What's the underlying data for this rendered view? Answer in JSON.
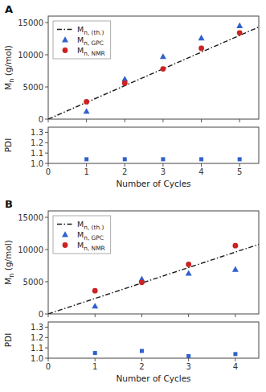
{
  "chart_data": [
    {
      "type": "scatter",
      "title": "A",
      "ylabel": "Mn (g/mol)",
      "xlim": [
        0,
        5.5
      ],
      "xticks": [
        0,
        1,
        2,
        3,
        4,
        5
      ],
      "ylim": [
        0,
        16000
      ],
      "yticks": [
        0,
        5000,
        10000,
        15000
      ],
      "tick_labels": "y",
      "legend": "upper left",
      "series": [
        {
          "name": "Mn, (th.)",
          "type": "line",
          "line_style": "dashdot",
          "color": "#1a1a1a",
          "x": [
            0,
            5.5
          ],
          "values": [
            0,
            14300
          ]
        },
        {
          "name": "Mn, GPC",
          "type": "scatter",
          "marker": "triangle",
          "color": "#3060CC",
          "x": [
            1,
            2,
            3,
            4,
            5
          ],
          "values": [
            1200,
            6200,
            9700,
            12600,
            14500
          ]
        },
        {
          "name": "Mn, NMR",
          "type": "scatter",
          "marker": "circle",
          "color": "#CC2222",
          "x": [
            1,
            2,
            3,
            4,
            5
          ],
          "values": [
            2700,
            5600,
            7800,
            11000,
            13400
          ]
        }
      ]
    },
    {
      "type": "scatter",
      "xlabel": "Number of Cycles",
      "ylabel": "PDI",
      "xlim": [
        0,
        5.5
      ],
      "xticks": [
        0,
        1,
        2,
        3,
        4,
        5
      ],
      "ylim": [
        1.0,
        1.35
      ],
      "yticks": [
        {
          "value": 1.0,
          "label": "1.0"
        },
        1.1,
        1.2,
        1.3
      ],
      "series": [
        {
          "type": "scatter",
          "marker": "square",
          "color": "#3060CC",
          "x": [
            1,
            2,
            3,
            4,
            5
          ],
          "values": [
            1.04,
            1.04,
            1.04,
            1.04,
            1.04
          ]
        }
      ]
    },
    {
      "type": "scatter",
      "title": "B",
      "ylabel": "Mn (g/mol)",
      "xlim": [
        0,
        4.5
      ],
      "xticks": [
        0,
        1,
        2,
        3,
        4
      ],
      "ylim": [
        0,
        16000
      ],
      "yticks": [
        0,
        5000,
        10000,
        15000
      ],
      "tick_labels": "y",
      "legend": "upper left",
      "series": [
        {
          "name": "Mn, (th.)",
          "type": "line",
          "line_style": "dashdot",
          "color": "#1a1a1a",
          "x": [
            0,
            4.5
          ],
          "values": [
            0,
            10800
          ]
        },
        {
          "name": "Mn, GPC",
          "type": "scatter",
          "marker": "triangle",
          "color": "#3060CC",
          "x": [
            1,
            2,
            3,
            4
          ],
          "values": [
            1200,
            5400,
            6300,
            6900
          ]
        },
        {
          "name": "Mn, NMR",
          "type": "scatter",
          "marker": "circle",
          "color": "#CC2222",
          "x": [
            1,
            2,
            3,
            4
          ],
          "values": [
            3600,
            4900,
            7700,
            10600
          ]
        }
      ]
    },
    {
      "type": "scatter",
      "xlabel": "Number of Cycles",
      "ylabel": "PDI",
      "xlim": [
        0,
        4.5
      ],
      "xticks": [
        0,
        1,
        2,
        3,
        4
      ],
      "ylim": [
        1.0,
        1.35
      ],
      "yticks": [
        {
          "value": 1.0,
          "label": "1.0"
        },
        1.1,
        1.2,
        1.3
      ],
      "series": [
        {
          "type": "scatter",
          "marker": "square",
          "color": "#3060CC",
          "x": [
            1,
            2,
            3,
            4
          ],
          "values": [
            1.05,
            1.07,
            1.02,
            1.04
          ]
        }
      ]
    }
  ]
}
